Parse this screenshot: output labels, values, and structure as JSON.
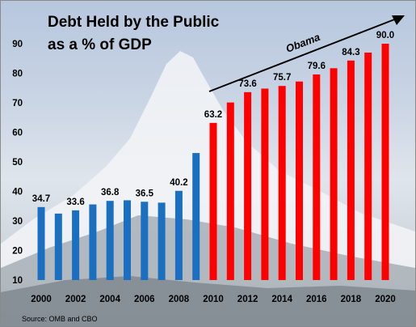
{
  "chart_data": {
    "type": "bar",
    "title_lines": [
      "Debt Held by the Public",
      "as a % of GDP"
    ],
    "source": "Source: OMB and CBO",
    "annotation": "Obama",
    "x_tick_labels": [
      "2000",
      "2002",
      "2004",
      "2006",
      "2008",
      "2010",
      "2012",
      "2014",
      "2016",
      "2018",
      "2020"
    ],
    "y_tick_labels": [
      "10",
      "20",
      "30",
      "40",
      "50",
      "60",
      "70",
      "80",
      "90"
    ],
    "ylim": [
      10,
      90
    ],
    "grid": false,
    "categories": [
      "2000",
      "2001",
      "2002",
      "2003",
      "2004",
      "2005",
      "2006",
      "2007",
      "2008",
      "2009",
      "2010",
      "2011",
      "2012",
      "2013",
      "2014",
      "2015",
      "2016",
      "2017",
      "2018",
      "2019",
      "2020"
    ],
    "values": [
      34.7,
      32.5,
      33.6,
      35.6,
      36.8,
      37.0,
      36.5,
      36.2,
      40.2,
      53.0,
      63.2,
      70.1,
      73.6,
      74.8,
      75.7,
      77.2,
      79.6,
      81.7,
      84.3,
      87.0,
      90.0
    ],
    "data_labels": [
      "34.7",
      "",
      "33.6",
      "",
      "36.8",
      "",
      "36.5",
      "",
      "40.2",
      "",
      "63.2",
      "",
      "73.6",
      "",
      "75.7",
      "",
      "79.6",
      "",
      "84.3",
      "",
      "90.0"
    ],
    "colors": [
      "#1a6fc0",
      "#1a6fc0",
      "#1a6fc0",
      "#1a6fc0",
      "#1a6fc0",
      "#1a6fc0",
      "#1a6fc0",
      "#1a6fc0",
      "#1a6fc0",
      "#1a6fc0",
      "#ff0000",
      "#ff0000",
      "#ff0000",
      "#ff0000",
      "#ff0000",
      "#ff0000",
      "#ff0000",
      "#ff0000",
      "#ff0000",
      "#ff0000",
      "#ff0000"
    ]
  }
}
